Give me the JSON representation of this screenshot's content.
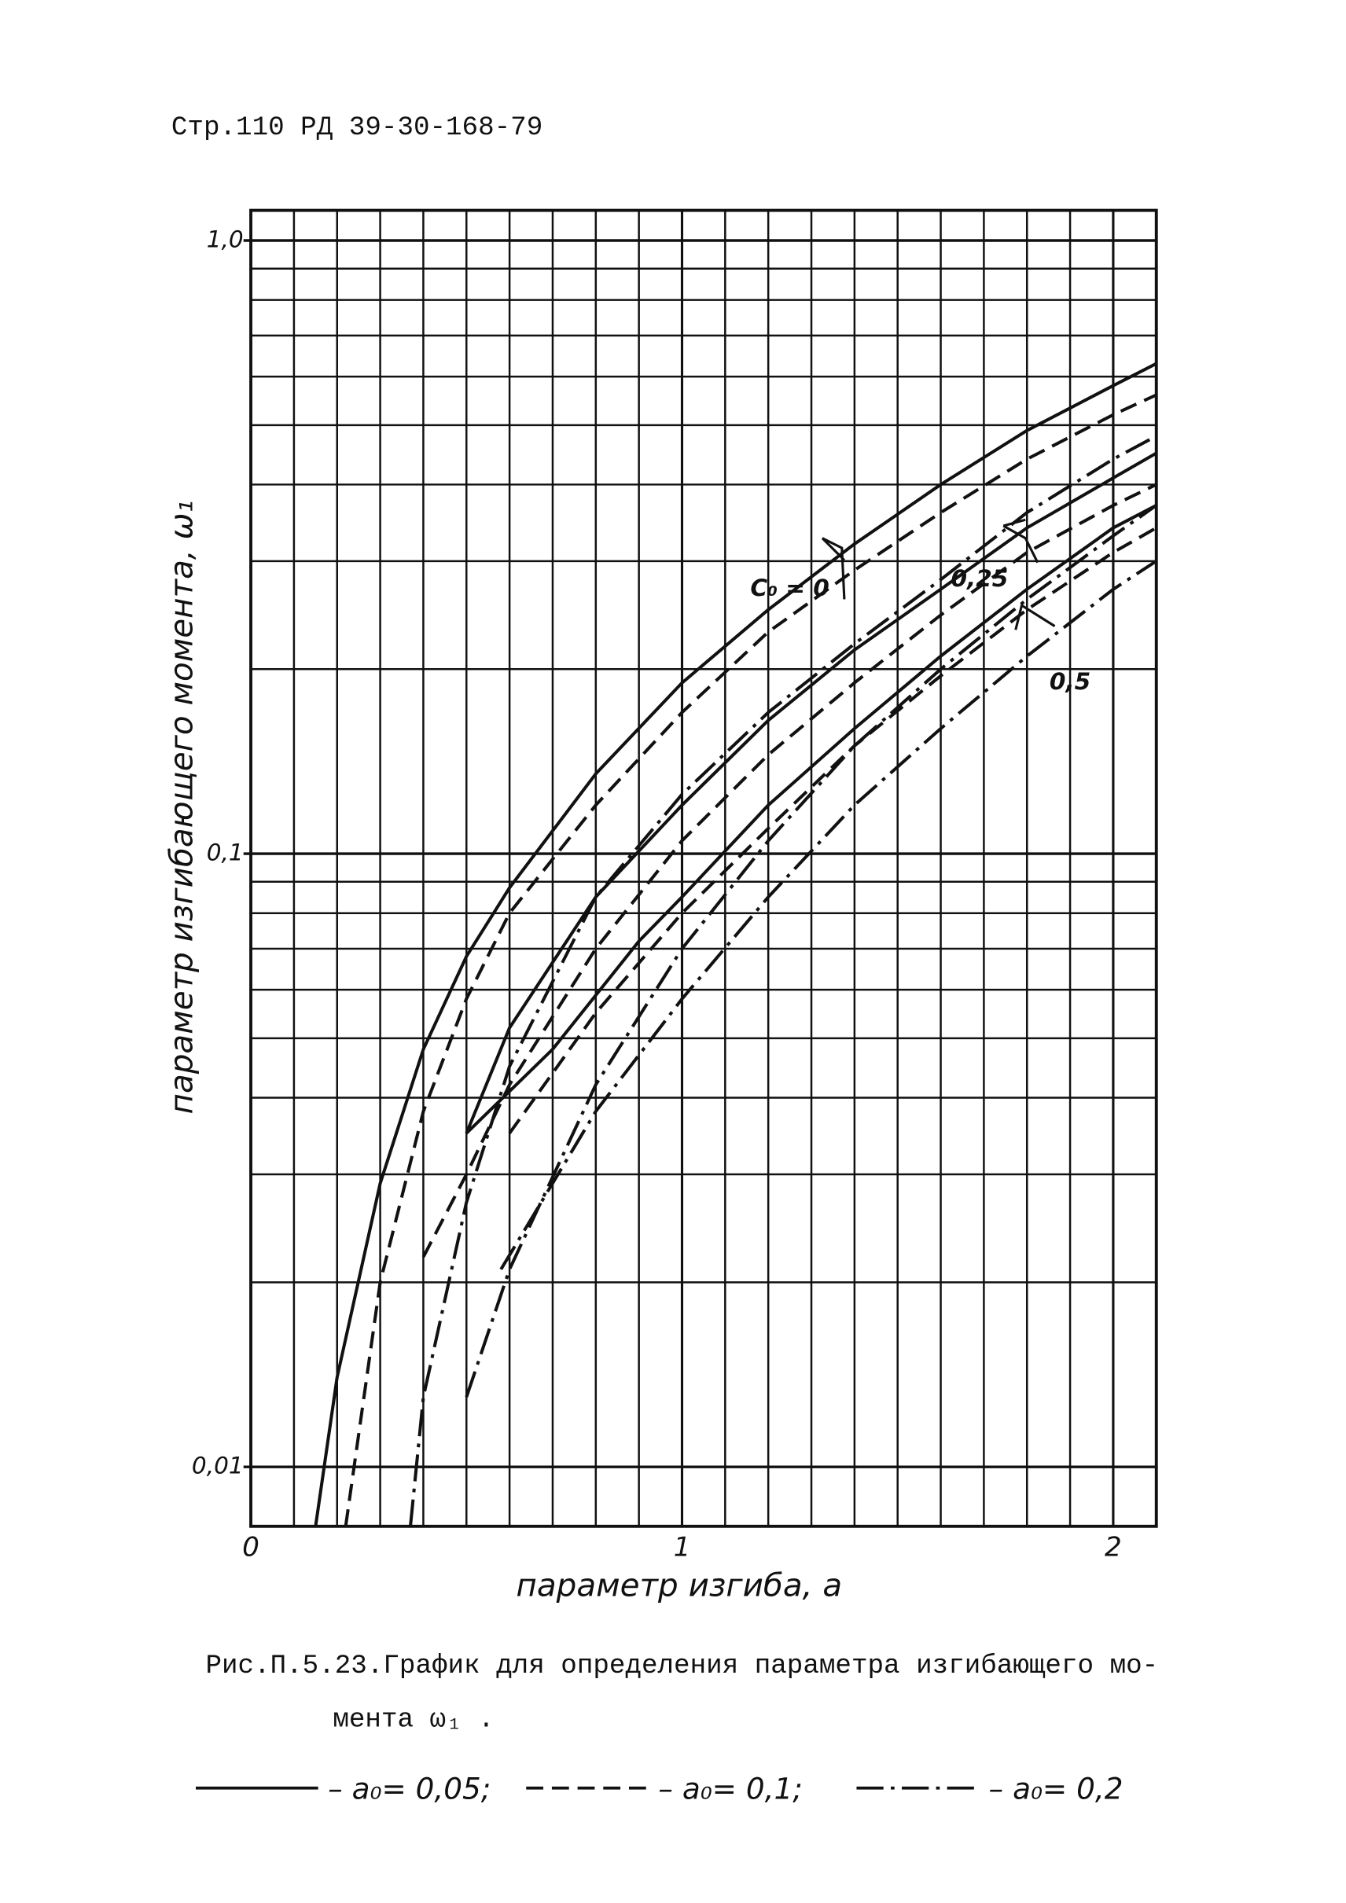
{
  "header": "Стр.110 РД 39-30-168-79",
  "chart_data": {
    "type": "line",
    "x_label": "параметр изгиба, a",
    "y_label": "параметр изгибающего момента, ω₁",
    "xlim": [
      0,
      2.1
    ],
    "ylim": [
      0.008,
      1.12
    ],
    "log_y": true,
    "grid": true,
    "xticks": [
      0,
      1,
      2
    ],
    "yticks": [
      {
        "value": 0.01,
        "label": "0,01"
      },
      {
        "value": 0.1,
        "label": "0,1"
      },
      {
        "value": 1,
        "label": "1,0"
      }
    ],
    "x_minor_grid": [
      0.1,
      0.2,
      0.3,
      0.4,
      0.5,
      0.6,
      0.7,
      0.8,
      0.9,
      1.1,
      1.2,
      1.3,
      1.4,
      1.5,
      1.6,
      1.7,
      1.8,
      1.9
    ],
    "y_minor_grid": [
      0.02,
      0.03,
      0.04,
      0.05,
      0.06,
      0.07,
      0.08,
      0.09,
      0.2,
      0.3,
      0.4,
      0.5,
      0.6,
      0.7,
      0.8,
      0.9
    ],
    "color": "#111111",
    "series": [
      {
        "dash": "solid",
        "x": [
          0.15,
          0.2,
          0.3,
          0.4,
          0.5,
          0.6,
          0.8,
          1.0,
          1.2,
          1.4,
          1.6,
          1.8,
          2.0,
          2.1
        ],
        "values": [
          0.008,
          0.014,
          0.029,
          0.048,
          0.068,
          0.088,
          0.135,
          0.19,
          0.25,
          0.32,
          0.4,
          0.49,
          0.58,
          0.63
        ]
      },
      {
        "dash": "dashed",
        "x": [
          0.22,
          0.3,
          0.4,
          0.5,
          0.6,
          0.8,
          1.0,
          1.2,
          1.4,
          1.6,
          1.8,
          2.0,
          2.1
        ],
        "values": [
          0.008,
          0.02,
          0.038,
          0.058,
          0.08,
          0.12,
          0.17,
          0.23,
          0.29,
          0.36,
          0.44,
          0.52,
          0.56
        ]
      },
      {
        "dash": "dashdot",
        "x": [
          0.37,
          0.4,
          0.5,
          0.6,
          0.8,
          1.0,
          1.2,
          1.4,
          1.6,
          1.8,
          2.0,
          2.1
        ],
        "values": [
          0.008,
          0.013,
          0.027,
          0.045,
          0.085,
          0.125,
          0.17,
          0.22,
          0.28,
          0.36,
          0.44,
          0.48
        ]
      },
      {
        "dash": "solid",
        "x": [
          0.5,
          0.6,
          0.8,
          1.0,
          1.2,
          1.4,
          1.6,
          1.8,
          2.0,
          2.1
        ],
        "values": [
          0.035,
          0.052,
          0.085,
          0.12,
          0.165,
          0.215,
          0.27,
          0.34,
          0.41,
          0.45
        ]
      },
      {
        "dash": "dashed",
        "x": [
          0.4,
          0.5,
          0.6,
          0.8,
          1.0,
          1.2,
          1.4,
          1.6,
          1.8,
          2.0,
          2.1
        ],
        "values": [
          0.022,
          0.03,
          0.042,
          0.07,
          0.105,
          0.145,
          0.19,
          0.245,
          0.31,
          0.37,
          0.4
        ]
      },
      {
        "dash": "dashdot",
        "x": [
          0.5,
          0.6,
          0.8,
          1.0,
          1.2,
          1.4,
          1.6,
          1.8,
          2.0,
          2.1
        ],
        "values": [
          0.013,
          0.021,
          0.042,
          0.07,
          0.105,
          0.15,
          0.2,
          0.26,
          0.33,
          0.37
        ]
      },
      {
        "dash": "solid",
        "x": [
          0.5,
          0.7,
          0.9,
          1.0,
          1.2,
          1.4,
          1.6,
          1.8,
          2.0,
          2.1
        ],
        "values": [
          0.035,
          0.048,
          0.072,
          0.085,
          0.12,
          0.16,
          0.21,
          0.27,
          0.34,
          0.37
        ]
      },
      {
        "dash": "dashed",
        "x": [
          0.6,
          0.8,
          1.0,
          1.2,
          1.4,
          1.6,
          1.8,
          2.0,
          2.1
        ],
        "values": [
          0.035,
          0.055,
          0.08,
          0.11,
          0.15,
          0.195,
          0.25,
          0.31,
          0.34
        ]
      },
      {
        "dash": "dashdot",
        "x": [
          0.58,
          0.8,
          1.0,
          1.2,
          1.4,
          1.6,
          1.8,
          2.0,
          2.1
        ],
        "values": [
          0.021,
          0.038,
          0.058,
          0.085,
          0.12,
          0.16,
          0.21,
          0.27,
          0.3
        ]
      }
    ],
    "annotations": [
      {
        "text": "C₀ = 0",
        "x": 1.25,
        "y": 0.27
      },
      {
        "text": "0,25",
        "x": 1.69,
        "y": 0.28
      },
      {
        "text": "0,5",
        "x": 1.9,
        "y": 0.19
      }
    ]
  },
  "caption": [
    "Рис.П.5.23.График для определения параметра изгибающего мо-",
    "мента ω₁ ."
  ],
  "legend": [
    {
      "dash": "solid",
      "label": "– a₀= 0,05;"
    },
    {
      "dash": "dashed",
      "label": "– a₀= 0,1;"
    },
    {
      "dash": "dashdot",
      "label": "– a₀= 0,2"
    }
  ]
}
